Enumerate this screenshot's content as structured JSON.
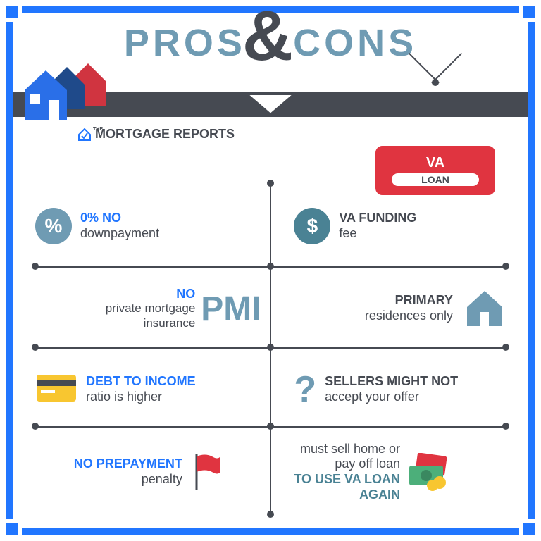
{
  "title": {
    "pros": "PROS",
    "cons": "CONS",
    "amp": "&"
  },
  "brand": {
    "the": "THE",
    "name": "MORTGAGE REPORTS"
  },
  "sign": {
    "title": "VA",
    "sub": "LOAN"
  },
  "colors": {
    "blue": "#2176ff",
    "teal": "#6f9bb3",
    "tealDark": "#4a8294",
    "dark": "#464a52",
    "red": "#e03440",
    "yellow": "#f8c630"
  },
  "pros": [
    {
      "bold": "0% NO",
      "sub": "downpayment",
      "icon": "percent"
    },
    {
      "bold": "NO",
      "sub": "private mortgage insurance",
      "tag": "PMI"
    },
    {
      "bold": "DEBT TO INCOME",
      "sub": "ratio is higher",
      "icon": "card"
    },
    {
      "bold": "NO PREPAYMENT",
      "sub": "penalty",
      "icon": "flag"
    }
  ],
  "cons": [
    {
      "bold": "VA FUNDING",
      "sub": "fee",
      "icon": "dollar"
    },
    {
      "bold": "PRIMARY",
      "sub": "residences only",
      "icon": "house"
    },
    {
      "bold": "SELLERS MIGHT NOT",
      "sub": "accept your offer",
      "icon": "question"
    },
    {
      "pre": "must sell home or pay off loan",
      "bold": "TO USE VA LOAN AGAIN",
      "icon": "money"
    }
  ],
  "grid": {
    "hlines": [
      118,
      233,
      345
    ],
    "vdotY": [
      0,
      118,
      233,
      345,
      470
    ]
  }
}
